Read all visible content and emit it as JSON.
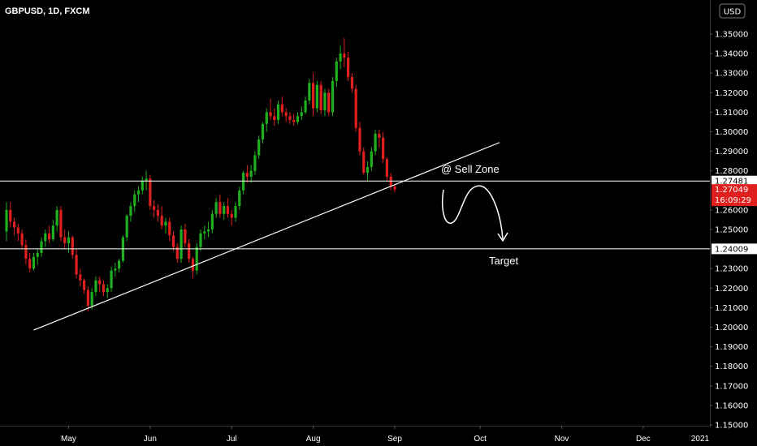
{
  "chart_data": {
    "type": "candlestick",
    "title": "GBPUSD, 1D, FXCM",
    "currency_button": "USD",
    "ylim": [
      1.15,
      1.35
    ],
    "y_ticks": [
      1.35,
      1.34,
      1.33,
      1.32,
      1.31,
      1.3,
      1.29,
      1.28,
      1.26,
      1.25,
      1.23,
      1.22,
      1.21,
      1.2,
      1.19,
      1.18,
      1.17,
      1.16,
      1.15
    ],
    "y_tick_labels": [
      "1.35000",
      "1.34000",
      "1.33000",
      "1.32000",
      "1.31000",
      "1.30000",
      "1.29000",
      "1.28000",
      "1.26000",
      "1.25000",
      "1.23000",
      "1.22000",
      "1.21000",
      "1.20000",
      "1.19000",
      "1.18000",
      "1.17000",
      "1.16000",
      "1.15000"
    ],
    "x_ticks": [
      {
        "label": "May",
        "day": 16
      },
      {
        "label": "Jun",
        "day": 37
      },
      {
        "label": "Jul",
        "day": 58
      },
      {
        "label": "Aug",
        "day": 79
      },
      {
        "label": "Sep",
        "day": 100
      },
      {
        "label": "Oct",
        "day": 122
      },
      {
        "label": "Nov",
        "day": 143
      },
      {
        "label": "Dec",
        "day": 164
      },
      {
        "label": "2021",
        "day": 186
      }
    ],
    "candles": [
      [
        1.249,
        1.264,
        1.244,
        1.26
      ],
      [
        1.26,
        1.264,
        1.251,
        1.254
      ],
      [
        1.254,
        1.256,
        1.247,
        1.251
      ],
      [
        1.251,
        1.253,
        1.244,
        1.248
      ],
      [
        1.248,
        1.25,
        1.24,
        1.242
      ],
      [
        1.242,
        1.245,
        1.232,
        1.235
      ],
      [
        1.235,
        1.238,
        1.228,
        1.23
      ],
      [
        1.23,
        1.238,
        1.229,
        1.236
      ],
      [
        1.236,
        1.24,
        1.232,
        1.238
      ],
      [
        1.238,
        1.246,
        1.236,
        1.244
      ],
      [
        1.244,
        1.25,
        1.241,
        1.248
      ],
      [
        1.248,
        1.252,
        1.243,
        1.245
      ],
      [
        1.245,
        1.255,
        1.244,
        1.252
      ],
      [
        1.252,
        1.262,
        1.249,
        1.26
      ],
      [
        1.26,
        1.262,
        1.244,
        1.246
      ],
      [
        1.246,
        1.25,
        1.24,
        1.243
      ],
      [
        1.243,
        1.249,
        1.238,
        1.246
      ],
      [
        1.246,
        1.247,
        1.235,
        1.237
      ],
      [
        1.237,
        1.24,
        1.225,
        1.227
      ],
      [
        1.227,
        1.23,
        1.221,
        1.224
      ],
      [
        1.224,
        1.225,
        1.217,
        1.219
      ],
      [
        1.219,
        1.221,
        1.208,
        1.211
      ],
      [
        1.211,
        1.22,
        1.209,
        1.218
      ],
      [
        1.218,
        1.226,
        1.216,
        1.224
      ],
      [
        1.224,
        1.226,
        1.218,
        1.222
      ],
      [
        1.222,
        1.224,
        1.216,
        1.218
      ],
      [
        1.218,
        1.222,
        1.215,
        1.22
      ],
      [
        1.22,
        1.231,
        1.218,
        1.229
      ],
      [
        1.229,
        1.233,
        1.226,
        1.23
      ],
      [
        1.23,
        1.235,
        1.228,
        1.234
      ],
      [
        1.234,
        1.247,
        1.233,
        1.246
      ],
      [
        1.246,
        1.258,
        1.244,
        1.257
      ],
      [
        1.257,
        1.264,
        1.254,
        1.262
      ],
      [
        1.262,
        1.27,
        1.259,
        1.268
      ],
      [
        1.268,
        1.272,
        1.264,
        1.27
      ],
      [
        1.27,
        1.277,
        1.268,
        1.275
      ],
      [
        1.275,
        1.28,
        1.27,
        1.276
      ],
      [
        1.276,
        1.278,
        1.26,
        1.262
      ],
      [
        1.262,
        1.265,
        1.256,
        1.26
      ],
      [
        1.26,
        1.263,
        1.254,
        1.257
      ],
      [
        1.257,
        1.262,
        1.25,
        1.252
      ],
      [
        1.252,
        1.256,
        1.248,
        1.254
      ],
      [
        1.254,
        1.256,
        1.244,
        1.247
      ],
      [
        1.247,
        1.249,
        1.239,
        1.241
      ],
      [
        1.241,
        1.243,
        1.233,
        1.235
      ],
      [
        1.235,
        1.252,
        1.233,
        1.25
      ],
      [
        1.25,
        1.253,
        1.241,
        1.243
      ],
      [
        1.243,
        1.245,
        1.233,
        1.235
      ],
      [
        1.235,
        1.236,
        1.225,
        1.229
      ],
      [
        1.229,
        1.243,
        1.227,
        1.241
      ],
      [
        1.241,
        1.25,
        1.239,
        1.248
      ],
      [
        1.248,
        1.252,
        1.245,
        1.249
      ],
      [
        1.249,
        1.254,
        1.246,
        1.25
      ],
      [
        1.25,
        1.26,
        1.248,
        1.258
      ],
      [
        1.258,
        1.266,
        1.256,
        1.264
      ],
      [
        1.264,
        1.268,
        1.256,
        1.258
      ],
      [
        1.258,
        1.264,
        1.255,
        1.262
      ],
      [
        1.262,
        1.266,
        1.256,
        1.258
      ],
      [
        1.258,
        1.26,
        1.252,
        1.256
      ],
      [
        1.256,
        1.264,
        1.254,
        1.262
      ],
      [
        1.262,
        1.272,
        1.26,
        1.27
      ],
      [
        1.27,
        1.28,
        1.268,
        1.279
      ],
      [
        1.279,
        1.283,
        1.274,
        1.277
      ],
      [
        1.277,
        1.283,
        1.274,
        1.28
      ],
      [
        1.28,
        1.29,
        1.278,
        1.288
      ],
      [
        1.288,
        1.298,
        1.286,
        1.296
      ],
      [
        1.296,
        1.305,
        1.294,
        1.304
      ],
      [
        1.304,
        1.312,
        1.3,
        1.31
      ],
      [
        1.31,
        1.317,
        1.306,
        1.308
      ],
      [
        1.308,
        1.312,
        1.303,
        1.306
      ],
      [
        1.306,
        1.316,
        1.304,
        1.314
      ],
      [
        1.314,
        1.318,
        1.308,
        1.31
      ],
      [
        1.31,
        1.312,
        1.305,
        1.308
      ],
      [
        1.308,
        1.31,
        1.304,
        1.306
      ],
      [
        1.306,
        1.309,
        1.303,
        1.305
      ],
      [
        1.305,
        1.31,
        1.304,
        1.308
      ],
      [
        1.308,
        1.313,
        1.306,
        1.31
      ],
      [
        1.31,
        1.318,
        1.309,
        1.316
      ],
      [
        1.316,
        1.327,
        1.314,
        1.325
      ],
      [
        1.325,
        1.33,
        1.308,
        1.312
      ],
      [
        1.312,
        1.326,
        1.31,
        1.324
      ],
      [
        1.324,
        1.326,
        1.309,
        1.311
      ],
      [
        1.311,
        1.322,
        1.308,
        1.32
      ],
      [
        1.32,
        1.322,
        1.308,
        1.31
      ],
      [
        1.31,
        1.328,
        1.308,
        1.326
      ],
      [
        1.326,
        1.338,
        1.323,
        1.336
      ],
      [
        1.336,
        1.344,
        1.332,
        1.34
      ],
      [
        1.34,
        1.348,
        1.333,
        1.338
      ],
      [
        1.338,
        1.341,
        1.326,
        1.328
      ],
      [
        1.328,
        1.33,
        1.32,
        1.322
      ],
      [
        1.322,
        1.324,
        1.3,
        1.302
      ],
      [
        1.302,
        1.305,
        1.288,
        1.29
      ],
      [
        1.29,
        1.292,
        1.278,
        1.279
      ],
      [
        1.279,
        1.285,
        1.275,
        1.282
      ],
      [
        1.282,
        1.292,
        1.28,
        1.29
      ],
      [
        1.29,
        1.301,
        1.288,
        1.299
      ],
      [
        1.299,
        1.301,
        1.292,
        1.297
      ],
      [
        1.297,
        1.3,
        1.284,
        1.286
      ],
      [
        1.286,
        1.287,
        1.275,
        1.277
      ],
      [
        1.277,
        1.279,
        1.27,
        1.272
      ],
      [
        1.272,
        1.273,
        1.269,
        1.2705
      ]
    ],
    "horizontal_levels": [
      {
        "value": 1.27481,
        "label": "1.27481"
      },
      {
        "value": 1.24009,
        "label": "1.24009"
      }
    ],
    "price_tag": {
      "value": 1.27049,
      "label": "1.27049",
      "countdown": "16:09:29"
    },
    "trendline": {
      "start": {
        "day": 7,
        "price": 1.1985
      },
      "end": {
        "day": 127,
        "price": 1.2945
      }
    },
    "annotations": [
      "@ Sell Zone",
      "Target"
    ]
  }
}
